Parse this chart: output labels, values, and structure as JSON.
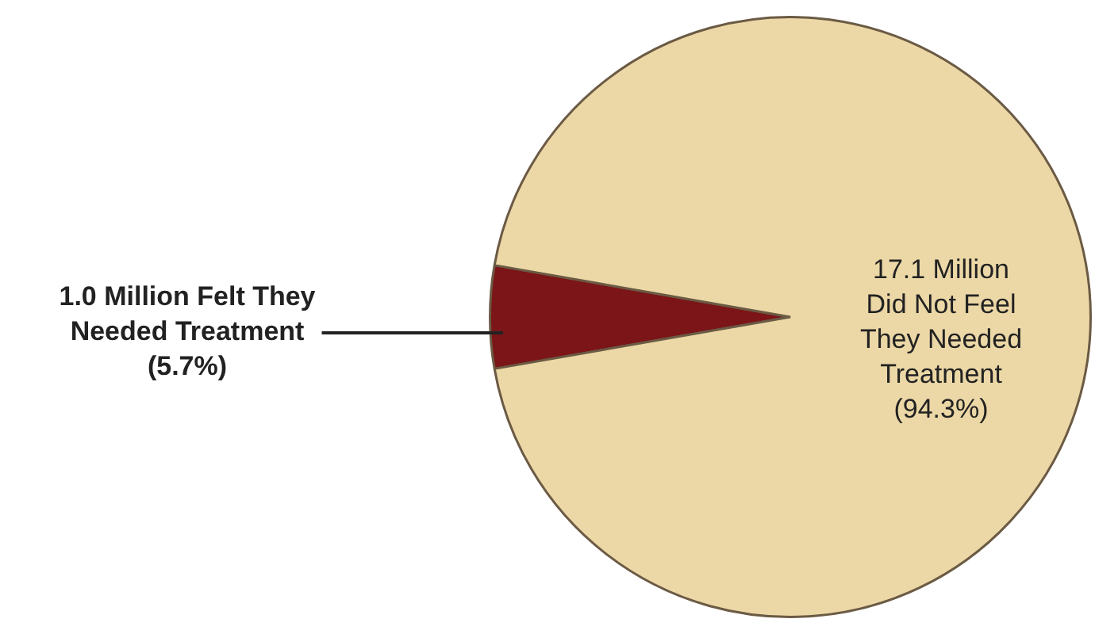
{
  "chart_data": {
    "type": "pie",
    "categories": [
      "1.0 Million Felt They Needed Treatment (5.7%)",
      "17.1 Million Did Not Feel They Needed Treatment (94.3%)"
    ],
    "values": [
      1.0,
      17.1
    ],
    "colors": [
      "#7b1518",
      "#ecd8a6"
    ],
    "legend": false
  }
}
